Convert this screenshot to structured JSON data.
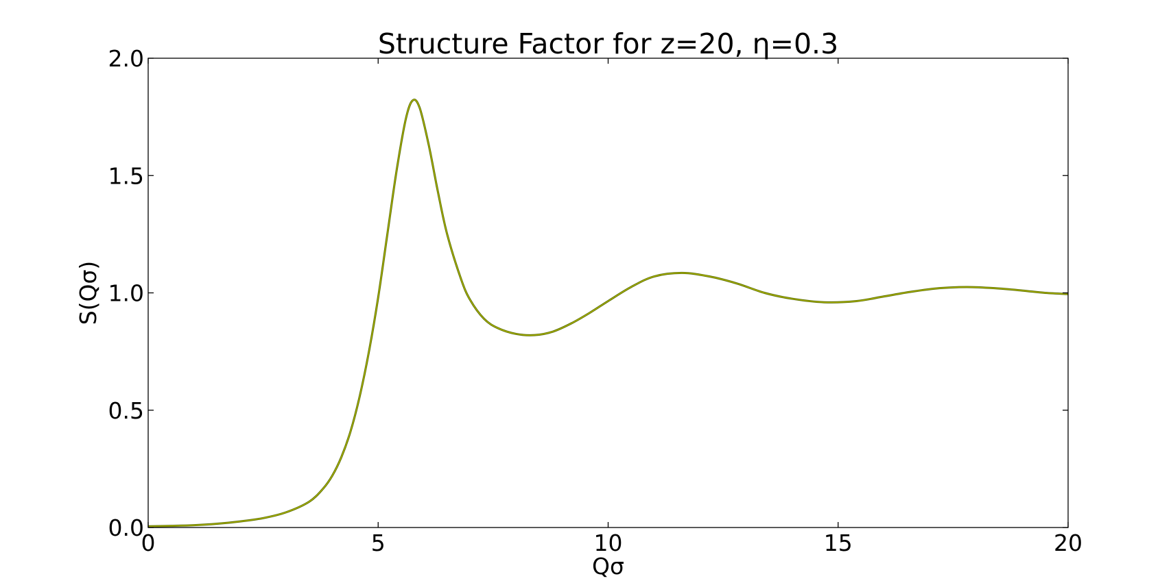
{
  "chart_data": {
    "type": "line",
    "title": "Structure Factor for z=20, η=0.3",
    "xlabel": "Qσ",
    "ylabel": "S(Qσ)",
    "xlim": [
      0,
      20
    ],
    "ylim": [
      0,
      2.0
    ],
    "x_ticks": [
      0,
      5,
      10,
      15,
      20
    ],
    "x_tick_labels": [
      "0",
      "5",
      "10",
      "15",
      "20"
    ],
    "y_ticks": [
      0.0,
      0.5,
      1.0,
      1.5,
      2.0
    ],
    "y_tick_labels": [
      "0.0",
      "0.5",
      "1.0",
      "1.5",
      "2.0"
    ],
    "grid": false,
    "series": [
      {
        "color": "#556b00",
        "x": [
          0.0,
          0.5,
          1.0,
          1.5,
          2.0,
          2.5,
          3.0,
          3.5,
          3.8,
          4.0,
          4.2,
          4.4,
          4.6,
          4.8,
          5.0,
          5.2,
          5.4,
          5.6,
          5.75,
          5.9,
          6.1,
          6.3,
          6.5,
          6.8,
          7.0,
          7.3,
          7.6,
          8.0,
          8.4,
          8.8,
          9.2,
          9.6,
          10.0,
          10.5,
          11.0,
          11.6,
          12.2,
          12.8,
          13.4,
          14.0,
          14.7,
          15.4,
          16.0,
          16.6,
          17.2,
          17.8,
          18.4,
          19.0,
          19.5,
          20.0
        ],
        "y": [
          0.005,
          0.007,
          0.01,
          0.016,
          0.026,
          0.04,
          0.065,
          0.11,
          0.165,
          0.22,
          0.3,
          0.41,
          0.56,
          0.75,
          0.98,
          1.25,
          1.52,
          1.74,
          1.82,
          1.79,
          1.63,
          1.43,
          1.25,
          1.06,
          0.97,
          0.89,
          0.85,
          0.825,
          0.82,
          0.835,
          0.87,
          0.915,
          0.965,
          1.025,
          1.07,
          1.085,
          1.07,
          1.04,
          1.0,
          0.975,
          0.96,
          0.965,
          0.985,
          1.005,
          1.02,
          1.025,
          1.02,
          1.01,
          1.0,
          0.995
        ]
      }
    ]
  }
}
